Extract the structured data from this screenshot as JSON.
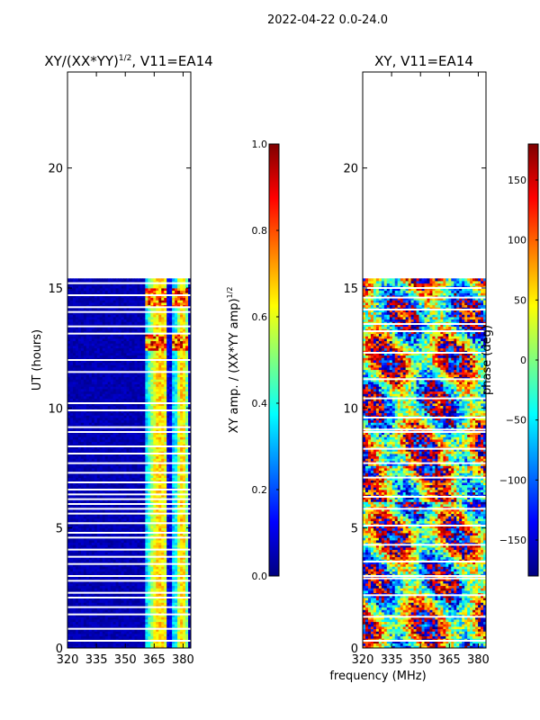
{
  "suptitle": "2022-04-22 0.0-24.0",
  "colors": {
    "colormap": [
      "#00007f",
      "#0000ff",
      "#007fff",
      "#00ffff",
      "#7fff7f",
      "#ffff00",
      "#ff7f00",
      "#ff0000",
      "#7f0000"
    ],
    "flag": "#ffffff",
    "axis": "#000000"
  },
  "chart_data": [
    {
      "type": "heatmap",
      "id": "amp",
      "title": "XY/(XX*YY)",
      "title_power": "1/2",
      "title_suffix": ", V11=EA14",
      "xlabel": "",
      "ylabel": "UT (hours)",
      "xlim": [
        320,
        384
      ],
      "ylim": [
        0,
        24
      ],
      "xticks": [
        320,
        335,
        350,
        365,
        380
      ],
      "yticks": [
        0,
        5,
        10,
        15,
        20
      ],
      "data_ut_range": [
        0,
        15.4
      ],
      "bright_channels_mhz": [
        [
          361,
          375
        ],
        [
          376,
          383
        ]
      ],
      "flagged_ut_hours": [
        0.3,
        0.8,
        1.4,
        1.7,
        2.1,
        2.3,
        2.8,
        3.0,
        3.5,
        3.8,
        4.1,
        4.6,
        4.8,
        5.2,
        5.6,
        5.8,
        6.0,
        6.2,
        6.4,
        6.6,
        6.9,
        7.3,
        7.7,
        8.1,
        8.4,
        9.0,
        9.2,
        9.9,
        10.2,
        11.5,
        12.0,
        13.1,
        13.4,
        14.0,
        14.2,
        14.7,
        15.2
      ],
      "colorbar": {
        "label": "XY amp. / (XX*YY amp)",
        "label_power": "1/2",
        "range": [
          0,
          1
        ],
        "ticks": [
          "0.0",
          "0.2",
          "0.4",
          "0.6",
          "0.8",
          "1.0"
        ],
        "tick_values": [
          0,
          0.2,
          0.4,
          0.6,
          0.8,
          1.0
        ]
      }
    },
    {
      "type": "heatmap",
      "id": "phase",
      "title": "XY, V11=EA14",
      "xlabel": "frequency (MHz)",
      "ylabel": "",
      "xlim": [
        320,
        384
      ],
      "ylim": [
        0,
        24
      ],
      "xticks": [
        320,
        335,
        350,
        365,
        380
      ],
      "yticks": [
        0,
        5,
        10,
        15,
        20
      ],
      "data_ut_range": [
        0,
        15.4
      ],
      "flagged_ut_hours": [
        0.3,
        1.3,
        2.2,
        2.9,
        3.0,
        3.6,
        4.3,
        5.1,
        5.8,
        6.3,
        7.1,
        7.7,
        8.3,
        9.0,
        9.1,
        9.6,
        10.4,
        11.2,
        12.3,
        13.2,
        13.5,
        14.1,
        14.6,
        15.0
      ],
      "colorbar": {
        "label": "phase (deg)",
        "range": [
          -180,
          180
        ],
        "ticks": [
          "150",
          "100",
          "50",
          "0",
          "−50",
          "−100",
          "−150"
        ],
        "tick_values": [
          150,
          100,
          50,
          0,
          -50,
          -100,
          -150
        ]
      }
    }
  ]
}
